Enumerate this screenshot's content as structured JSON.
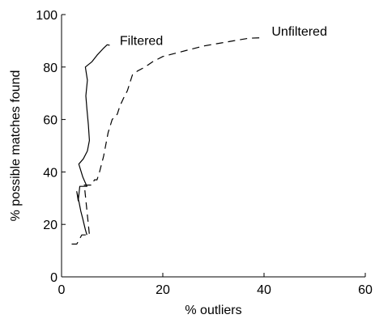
{
  "chart_data": {
    "type": "line",
    "title": "",
    "xlabel": "% outliers",
    "ylabel": "% possible matches found",
    "xlim": [
      0,
      60
    ],
    "ylim": [
      0,
      100
    ],
    "xticks": [
      0,
      20,
      40,
      60
    ],
    "yticks": [
      0,
      20,
      40,
      60,
      80,
      100
    ],
    "grid": false,
    "legend": "none",
    "series": [
      {
        "name": "Filtered",
        "style": "solid",
        "color": "#000000",
        "points": [
          [
            5.0,
            16.0
          ],
          [
            4.7,
            18.0
          ],
          [
            4.2,
            22.0
          ],
          [
            3.8,
            25.0
          ],
          [
            3.5,
            28.0
          ],
          [
            3.0,
            32.5
          ],
          [
            3.3,
            29.0
          ],
          [
            3.6,
            34.5
          ],
          [
            5.0,
            34.5
          ],
          [
            4.2,
            38.0
          ],
          [
            3.4,
            43.0
          ],
          [
            4.3,
            45.0
          ],
          [
            5.1,
            48.0
          ],
          [
            5.5,
            52.0
          ],
          [
            5.3,
            58.0
          ],
          [
            5.0,
            64.0
          ],
          [
            4.8,
            69.0
          ],
          [
            5.1,
            75.0
          ],
          [
            4.7,
            80.0
          ],
          [
            6.0,
            82.0
          ],
          [
            7.0,
            84.5
          ],
          [
            8.2,
            87.0
          ],
          [
            9.0,
            88.5
          ],
          [
            9.5,
            88.3
          ]
        ]
      },
      {
        "name": "Unfiltered",
        "style": "dashed",
        "color": "#000000",
        "points": [
          [
            2.0,
            12.5
          ],
          [
            3.0,
            12.5
          ],
          [
            4.0,
            16.0
          ],
          [
            5.5,
            16.0
          ],
          [
            4.5,
            35.0
          ],
          [
            6.0,
            35.0
          ],
          [
            6.5,
            37.0
          ],
          [
            7.0,
            37.0
          ],
          [
            7.5,
            40.0
          ],
          [
            8.3,
            46.0
          ],
          [
            9.2,
            55.0
          ],
          [
            10.0,
            60.0
          ],
          [
            11.0,
            62.0
          ],
          [
            11.5,
            65.0
          ],
          [
            12.2,
            68.0
          ],
          [
            13.0,
            71.0
          ],
          [
            13.5,
            74.0
          ],
          [
            14.0,
            77.0
          ],
          [
            15.0,
            78.5
          ],
          [
            16.5,
            80.0
          ],
          [
            18.0,
            82.0
          ],
          [
            20.0,
            84.0
          ],
          [
            22.0,
            85.0
          ],
          [
            25.0,
            86.5
          ],
          [
            28.0,
            88.0
          ],
          [
            31.0,
            89.0
          ],
          [
            34.0,
            90.0
          ],
          [
            37.0,
            91.0
          ],
          [
            40.0,
            91.2
          ]
        ]
      }
    ],
    "annotations": [
      {
        "text": "Filtered",
        "x": 11.5,
        "y": 88.5
      },
      {
        "text": "Unfiltered",
        "x": 41.5,
        "y": 92.0
      }
    ]
  }
}
